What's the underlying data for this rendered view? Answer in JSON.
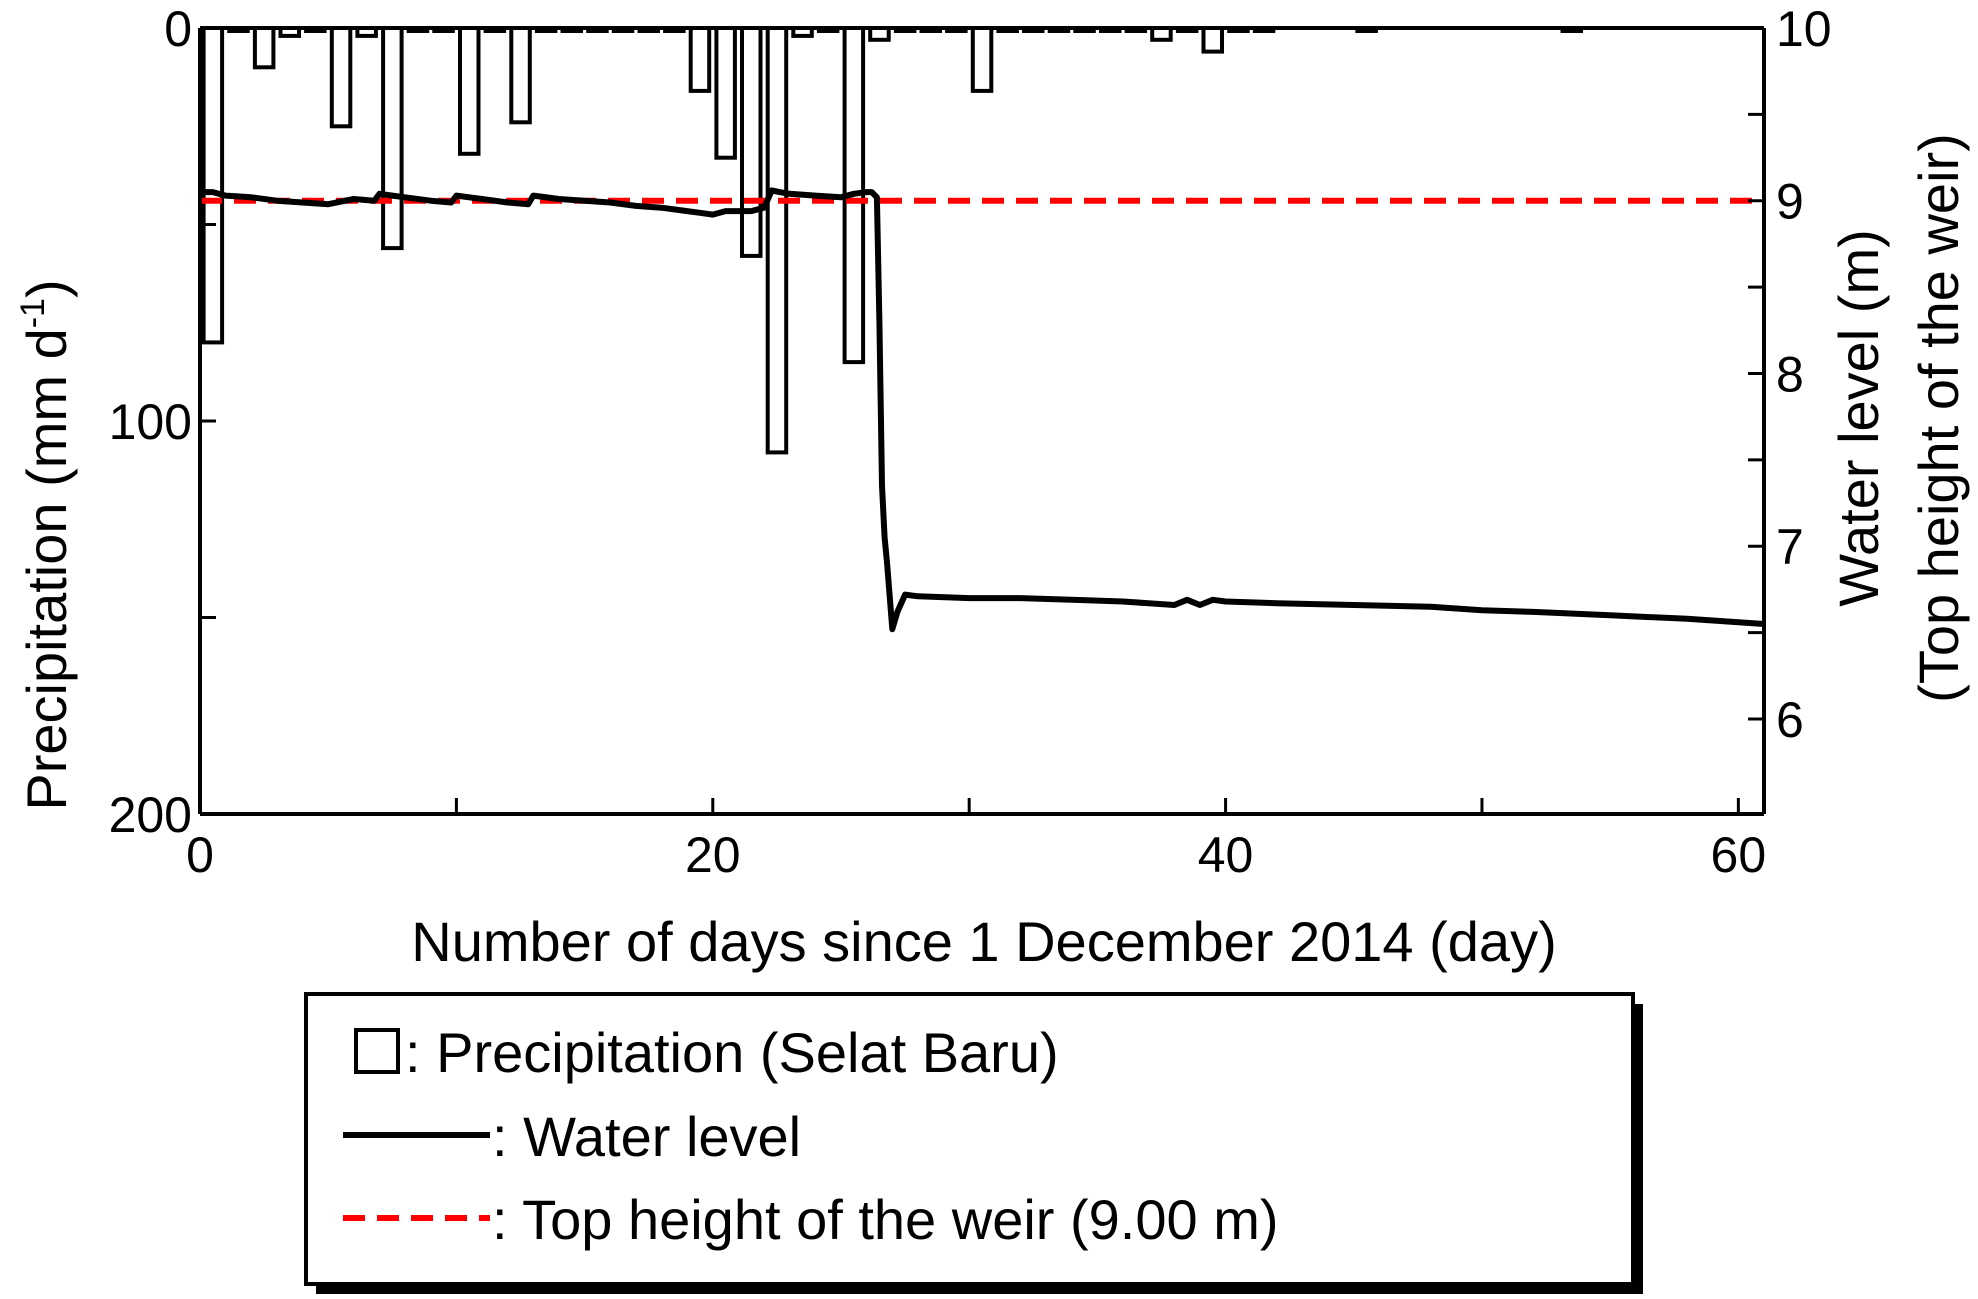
{
  "chart_data": {
    "type": "bar+line",
    "xlabel": "Number of days since 1 December 2014 (day)",
    "xlim": [
      0,
      61
    ],
    "xticks_major": [
      0,
      20,
      40,
      60
    ],
    "xticks_minor": [
      10,
      30,
      50
    ],
    "left_axis": {
      "label_main": "Precipitation (mm d",
      "label_sup": "-1",
      "label_close": ")",
      "lim_top": 0,
      "lim_bottom": 200,
      "inverted": true,
      "ticks_major": [
        0,
        100,
        200
      ],
      "ticks_minor": [
        50,
        150
      ]
    },
    "right_axis": {
      "label_line1": "Water level  (m)",
      "label_line2": "(Top height of the weir)",
      "ylim": [
        5.45,
        10
      ],
      "ticks_major": [
        6,
        7,
        8,
        9,
        10
      ],
      "ticks_minor": [
        6.5,
        7.5,
        8.5,
        9.5
      ]
    },
    "precipitation": {
      "name": "Precipitation (Selat Baru)",
      "days": [
        0,
        1,
        2,
        3,
        4,
        5,
        6,
        7,
        8,
        9,
        10,
        11,
        12,
        13,
        14,
        15,
        16,
        17,
        18,
        19,
        20,
        21,
        22,
        23,
        24,
        25,
        26,
        27,
        28,
        29,
        30,
        31,
        32,
        33,
        34,
        35,
        36,
        37,
        38,
        39,
        40,
        41,
        45,
        53
      ],
      "values": [
        80,
        0.5,
        10,
        2,
        0.5,
        25,
        2,
        56,
        0.5,
        0.5,
        32,
        0.5,
        24,
        0.5,
        0.5,
        0.5,
        0.5,
        0.5,
        0.5,
        16,
        33,
        58,
        108,
        2,
        0.5,
        85,
        3,
        0.5,
        0.5,
        0.5,
        16,
        0.5,
        0.5,
        0.5,
        0.5,
        0.5,
        0.5,
        3,
        0.5,
        6,
        0.5,
        0.5,
        0.5,
        0.5
      ]
    },
    "water_level": {
      "name": "Water level",
      "x": [
        0,
        0.5,
        1,
        2,
        3,
        4,
        5,
        6,
        6.8,
        7,
        7.5,
        8,
        9,
        9.8,
        10,
        10.5,
        11,
        12,
        12.8,
        13,
        14,
        15,
        16,
        17,
        18,
        19,
        19.5,
        20,
        20.5,
        21,
        21.5,
        22,
        22.3,
        22.6,
        23,
        24,
        25,
        25.5,
        26,
        26.2,
        26.4,
        26.5,
        26.6,
        26.7,
        26.8,
        27.0,
        27.2,
        27.5,
        28,
        30,
        32,
        34,
        36,
        38,
        38.5,
        39,
        39.5,
        40,
        42,
        45,
        48,
        50,
        52,
        55,
        58,
        60,
        61
      ],
      "y": [
        9.05,
        9.05,
        9.03,
        9.02,
        9.0,
        8.99,
        8.98,
        9.01,
        9.0,
        9.04,
        9.03,
        9.02,
        9.0,
        8.99,
        9.03,
        9.02,
        9.01,
        8.99,
        8.98,
        9.03,
        9.01,
        9.0,
        8.99,
        8.97,
        8.96,
        8.94,
        8.93,
        8.92,
        8.94,
        8.94,
        8.94,
        8.96,
        9.06,
        9.05,
        9.04,
        9.03,
        9.02,
        9.04,
        9.05,
        9.05,
        9.02,
        8.3,
        7.35,
        7.05,
        6.9,
        6.52,
        6.62,
        6.72,
        6.71,
        6.7,
        6.7,
        6.69,
        6.68,
        6.66,
        6.69,
        6.66,
        6.69,
        6.68,
        6.67,
        6.66,
        6.65,
        6.63,
        6.62,
        6.6,
        6.58,
        6.56,
        6.55
      ]
    },
    "weir": {
      "name": "Top height of the weir (9.00 m)",
      "value": 9.0,
      "color": "#ff0000"
    },
    "grid": false
  },
  "legend": {
    "items": [
      {
        "key": "precip",
        "label": ": Precipitation (Selat Baru)"
      },
      {
        "key": "water",
        "label": ": Water level"
      },
      {
        "key": "weir",
        "label": ": Top height of the weir (9.00 m)"
      }
    ]
  }
}
